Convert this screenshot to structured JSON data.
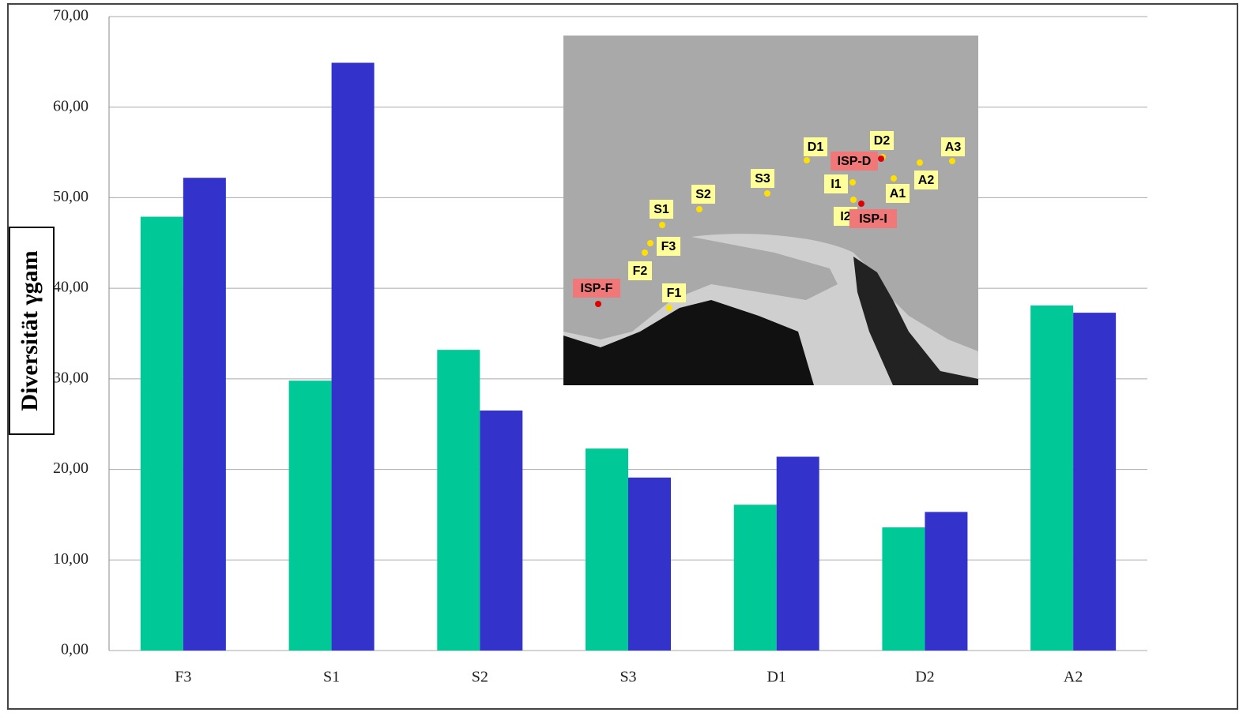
{
  "chart_data": {
    "type": "bar",
    "y_label": "Diversität γgam",
    "categories": [
      "F3",
      "S1",
      "S2",
      "S3",
      "D1",
      "D2",
      "A2"
    ],
    "series": [
      {
        "color": "#00c896",
        "values": [
          47.9,
          29.8,
          33.2,
          22.3,
          16.1,
          13.6,
          38.1
        ]
      },
      {
        "color": "#3333cc",
        "values": [
          52.2,
          64.9,
          26.5,
          19.1,
          21.4,
          15.3,
          37.3
        ]
      }
    ],
    "ylim": [
      0,
      70
    ],
    "yticks": [
      {
        "value": 0,
        "label": "0,00"
      },
      {
        "value": 10,
        "label": "10,00"
      },
      {
        "value": 20,
        "label": "20,00"
      },
      {
        "value": 30,
        "label": "30,00"
      },
      {
        "value": 40,
        "label": "40,00"
      },
      {
        "value": 50,
        "label": "50,00"
      },
      {
        "value": 60,
        "label": "60,00"
      },
      {
        "value": 70,
        "label": "70,00"
      }
    ],
    "grid": true
  },
  "inset_map": {
    "labels": [
      "D1",
      "D2",
      "A3",
      "ISP-D",
      "S3",
      "I1",
      "A2",
      "A1",
      "S2",
      "S1",
      "I2",
      "ISP-I",
      "F3",
      "F2",
      "ISP-F",
      "F1"
    ]
  }
}
